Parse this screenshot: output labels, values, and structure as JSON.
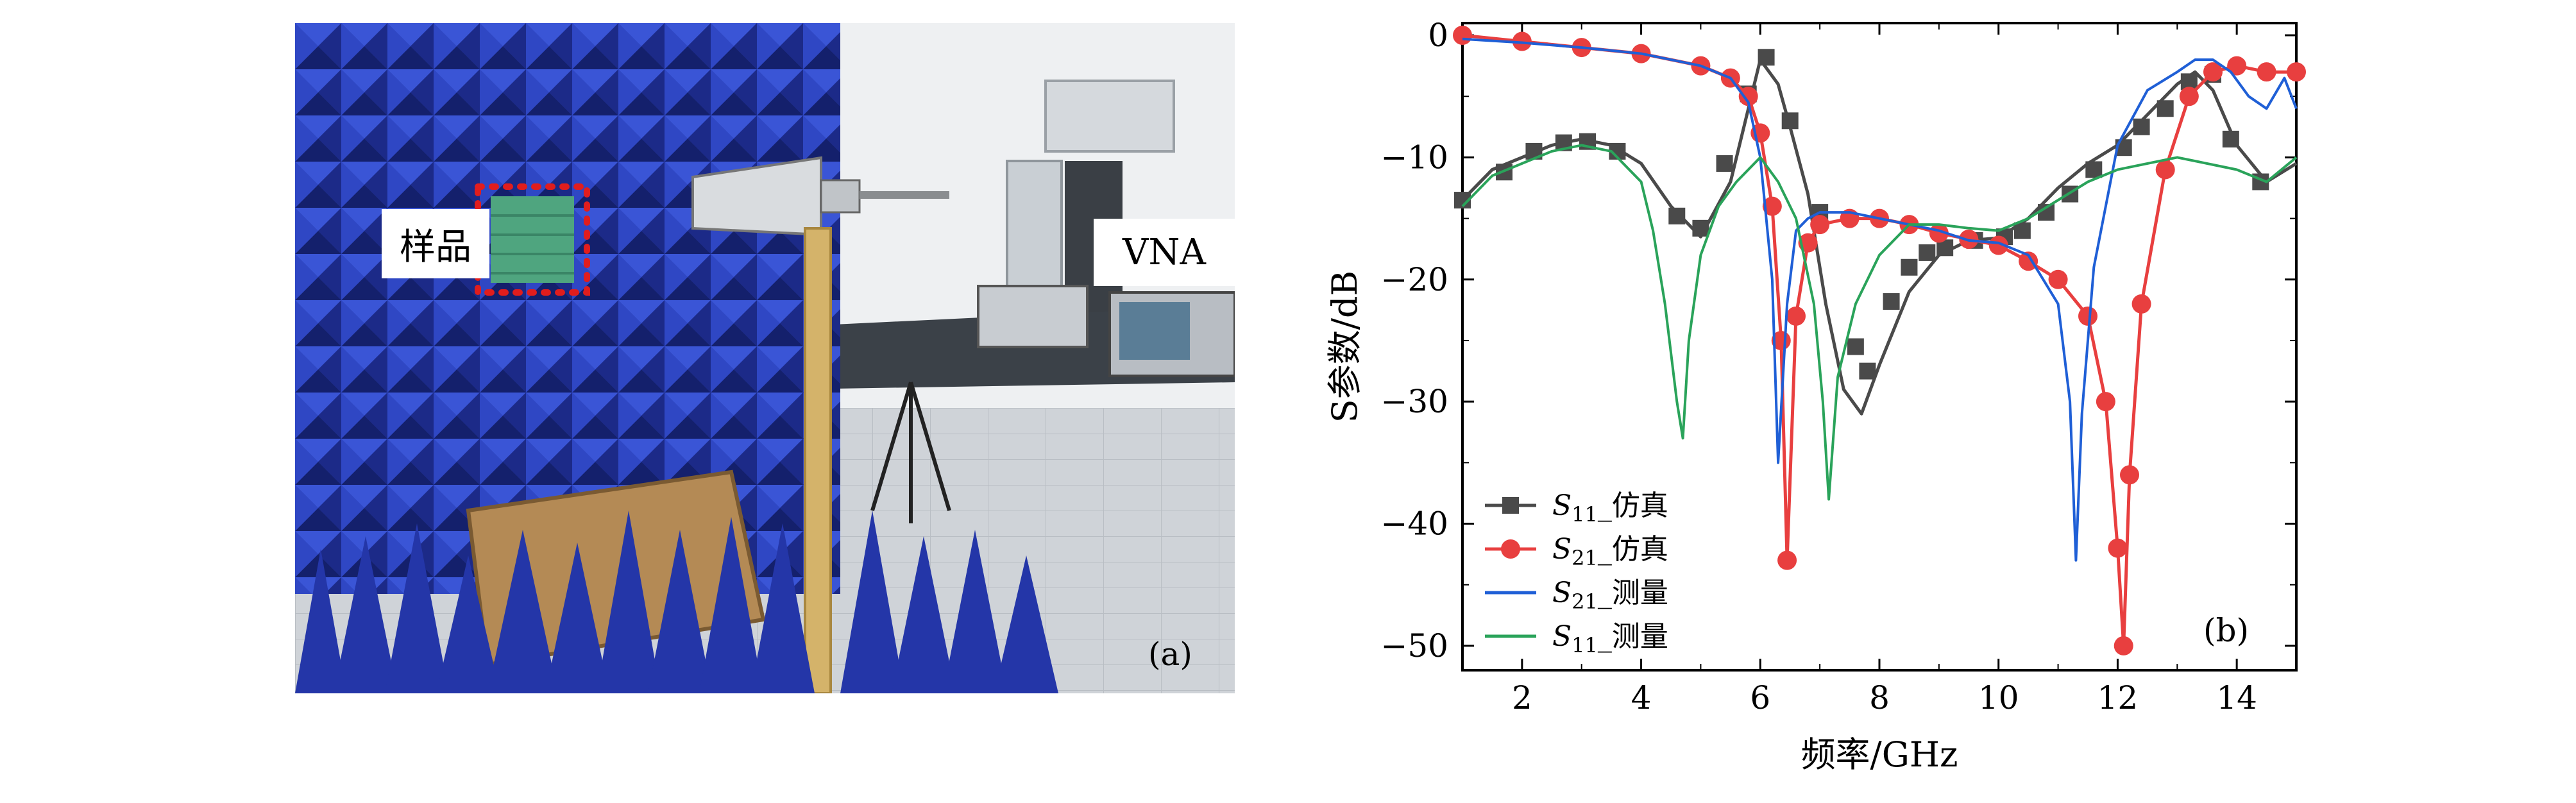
{
  "photo": {
    "sample_label": "样品",
    "vna_label": "VNA",
    "panel_label": "(a)",
    "colors": {
      "absorber": "#2a3fb8",
      "sample": "#4fa57f",
      "wall": "#eef0f2",
      "floor": "#cfd2d6",
      "marker": "#e11d1d"
    }
  },
  "chart_data": {
    "type": "line",
    "panel_label": "(b)",
    "xlabel": "频率/GHz",
    "ylabel": "S参数/dB",
    "xlim": [
      1,
      15
    ],
    "ylim": [
      -52,
      1
    ],
    "xticks": [
      2,
      4,
      6,
      8,
      10,
      12,
      14
    ],
    "yticks": [
      0,
      -10,
      -20,
      -30,
      -40,
      -50
    ],
    "xtick_labels": [
      "2",
      "4",
      "6",
      "8",
      "10",
      "12",
      "14"
    ],
    "ytick_labels": [
      "0",
      "−10",
      "−20",
      "−30",
      "−40",
      "−50"
    ],
    "legend_position": "bottom-left",
    "series": [
      {
        "name": "S11_仿真",
        "label_base": "S",
        "label_sub": "11",
        "label_suffix": "_仿真",
        "color": "#4a4a4a",
        "marker": "square",
        "x": [
          1.0,
          1.5,
          2.0,
          2.5,
          3.0,
          3.5,
          4.0,
          4.5,
          5.0,
          5.5,
          6.0,
          6.3,
          6.5,
          6.8,
          7.1,
          7.4,
          7.7,
          8.0,
          8.5,
          9.0,
          9.5,
          10.0,
          10.5,
          11.0,
          11.5,
          12.0,
          12.5,
          13.0,
          13.3,
          13.6,
          14.0,
          14.5,
          15.0
        ],
        "y": [
          -13.5,
          -11,
          -10,
          -9,
          -8.5,
          -9,
          -10.5,
          -14,
          -16.5,
          -12,
          -2,
          -4,
          -7.5,
          -13,
          -22,
          -29,
          -31,
          -27,
          -21,
          -18,
          -16.8,
          -16.6,
          -15,
          -12.5,
          -10.5,
          -9,
          -6.5,
          -4,
          -3,
          -4.5,
          -9,
          -12,
          -10.5
        ],
        "marker_x": [
          1.0,
          1.7,
          2.2,
          2.7,
          3.1,
          3.6,
          4.6,
          5.0,
          5.4,
          5.8,
          6.1,
          6.5,
          7.0,
          7.6,
          7.8,
          8.2,
          8.5,
          8.8,
          9.1,
          9.6,
          10.1,
          10.4,
          10.8,
          11.2,
          11.6,
          12.1,
          12.4,
          12.8,
          13.2,
          13.6,
          13.9,
          14.4
        ],
        "marker_y": [
          -13.5,
          -11.2,
          -9.5,
          -8.8,
          -8.7,
          -9.5,
          -14.8,
          -15.8,
          -10.5,
          -4.8,
          -1.8,
          -7,
          -14.5,
          -25.5,
          -27.5,
          -21.8,
          -19,
          -17.8,
          -17.4,
          -16.8,
          -16.5,
          -16,
          -14.5,
          -13,
          -11,
          -9.2,
          -7.5,
          -6,
          -3.8,
          -3.2,
          -8.5,
          -12
        ]
      },
      {
        "name": "S21_仿真",
        "label_base": "S",
        "label_sub": "21",
        "label_suffix": "_仿真",
        "color": "#e83f3f",
        "marker": "circle",
        "x": [
          1.0,
          2.0,
          3.0,
          4.0,
          5.0,
          5.5,
          5.8,
          6.0,
          6.2,
          6.35,
          6.45,
          6.6,
          6.8,
          7.0,
          7.5,
          8.0,
          8.5,
          9.0,
          9.5,
          10.0,
          10.5,
          11.0,
          11.5,
          11.8,
          12.0,
          12.1,
          12.2,
          12.4,
          12.8,
          13.2,
          13.6,
          14.0,
          14.5,
          15.0
        ],
        "y": [
          0,
          -0.5,
          -1,
          -1.5,
          -2.5,
          -3.5,
          -5,
          -8,
          -14,
          -25,
          -43,
          -23,
          -17,
          -15.5,
          -15,
          -15,
          -15.5,
          -16.2,
          -16.7,
          -17.2,
          -18.5,
          -20,
          -23,
          -30,
          -42,
          -50,
          -36,
          -22,
          -11,
          -5,
          -3,
          -2.5,
          -3,
          -3
        ]
      },
      {
        "name": "S21_测量",
        "label_base": "S",
        "label_sub": "21",
        "label_suffix": "_测量",
        "color": "#1f5fd6",
        "marker": "none",
        "x": [
          1.0,
          2.0,
          3.0,
          4.0,
          5.0,
          5.5,
          5.8,
          6.0,
          6.2,
          6.3,
          6.45,
          6.6,
          6.8,
          7.0,
          7.5,
          8.0,
          8.5,
          9.0,
          9.5,
          10.0,
          10.5,
          11.0,
          11.2,
          11.3,
          11.4,
          11.6,
          12.0,
          12.5,
          13.0,
          13.3,
          13.6,
          13.9,
          14.2,
          14.5,
          14.8,
          15.0
        ],
        "y": [
          -0.3,
          -0.6,
          -1,
          -1.5,
          -2.5,
          -3.5,
          -5.5,
          -10,
          -20,
          -35,
          -22,
          -16,
          -15,
          -14.5,
          -14.5,
          -15,
          -15.5,
          -16,
          -16.8,
          -17,
          -18,
          -22,
          -30,
          -43,
          -31,
          -19,
          -9,
          -4.5,
          -3,
          -2,
          -2,
          -3,
          -5,
          -6,
          -3.5,
          -6
        ]
      },
      {
        "name": "S11_测量",
        "label_base": "S",
        "label_sub": "11",
        "label_suffix": "_测量",
        "color": "#2aa35a",
        "marker": "none",
        "x": [
          1.0,
          1.5,
          2.0,
          2.5,
          3.0,
          3.5,
          4.0,
          4.2,
          4.4,
          4.6,
          4.7,
          4.8,
          5.0,
          5.3,
          5.6,
          6.0,
          6.3,
          6.6,
          6.9,
          7.05,
          7.15,
          7.3,
          7.6,
          8.0,
          8.5,
          9.0,
          9.5,
          10.0,
          10.5,
          11.0,
          11.5,
          12.0,
          12.5,
          13.0,
          13.5,
          14.0,
          14.5,
          15.0
        ],
        "y": [
          -14,
          -11.5,
          -10.5,
          -9.5,
          -9,
          -9.5,
          -12,
          -16,
          -22,
          -30,
          -33,
          -25,
          -18,
          -14,
          -12,
          -10,
          -12,
          -15,
          -22,
          -30,
          -38,
          -28,
          -22,
          -18,
          -15.5,
          -15.5,
          -15.8,
          -16,
          -15,
          -13.5,
          -12,
          -11,
          -10.5,
          -10,
          -10.5,
          -11,
          -12,
          -10
        ]
      }
    ]
  }
}
